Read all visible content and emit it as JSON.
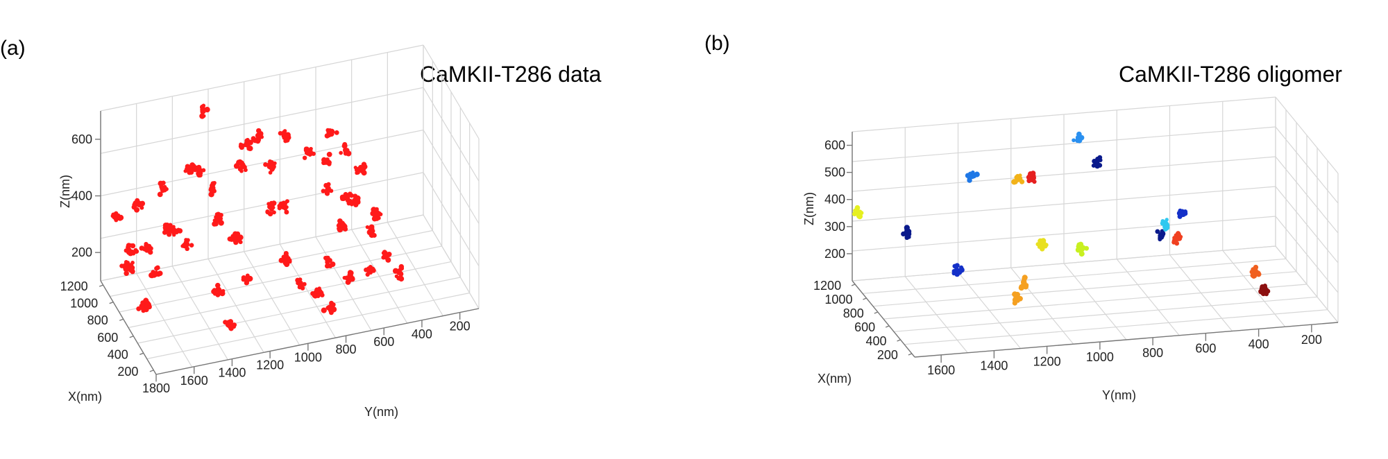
{
  "chart_data": [
    {
      "panel": "(a)",
      "type": "scatter",
      "title": "CaMKII-T286 data",
      "xlabel": "Y(nm)",
      "ylabel": "X(nm)",
      "zlabel": "Z(nm)",
      "y_ticks": [
        "1800",
        "1600",
        "1400",
        "1200",
        "1000",
        "800",
        "600",
        "400",
        "200"
      ],
      "x_ticks": [
        "1200",
        "1000",
        "800",
        "600",
        "400",
        "200"
      ],
      "z_ticks": [
        "600",
        "400",
        "200"
      ],
      "point_color": "#ff1a1a",
      "clusters": [
        {
          "y": 1800,
          "x": 950,
          "z": 420
        },
        {
          "y": 1700,
          "x": 900,
          "z": 460
        },
        {
          "y": 1750,
          "x": 850,
          "z": 260
        },
        {
          "y": 1650,
          "x": 900,
          "z": 300
        },
        {
          "y": 1620,
          "x": 820,
          "z": 230
        },
        {
          "y": 1750,
          "x": 600,
          "z": 200
        },
        {
          "y": 1600,
          "x": 700,
          "z": 420
        },
        {
          "y": 1550,
          "x": 950,
          "z": 480
        },
        {
          "y": 1500,
          "x": 900,
          "z": 340
        },
        {
          "y": 1450,
          "x": 850,
          "z": 300
        },
        {
          "y": 1400,
          "x": 1000,
          "z": 520
        },
        {
          "y": 1350,
          "x": 1000,
          "z": 500
        },
        {
          "y": 1300,
          "x": 900,
          "z": 460
        },
        {
          "y": 1300,
          "x": 800,
          "z": 380
        },
        {
          "y": 1250,
          "x": 700,
          "z": 340
        },
        {
          "y": 1200,
          "x": 800,
          "z": 300
        },
        {
          "y": 1350,
          "x": 600,
          "z": 200
        },
        {
          "y": 1200,
          "x": 600,
          "z": 220
        },
        {
          "y": 1150,
          "x": 900,
          "z": 520
        },
        {
          "y": 1100,
          "x": 1000,
          "z": 560
        },
        {
          "y": 1050,
          "x": 950,
          "z": 600
        },
        {
          "y": 1000,
          "x": 900,
          "z": 500
        },
        {
          "y": 1050,
          "x": 700,
          "z": 420
        },
        {
          "y": 950,
          "x": 800,
          "z": 380
        },
        {
          "y": 1000,
          "x": 600,
          "z": 260
        },
        {
          "y": 900,
          "x": 1000,
          "z": 560
        },
        {
          "y": 950,
          "x": 500,
          "z": 200
        },
        {
          "y": 1300,
          "x": 1100,
          "z": 680
        },
        {
          "y": 800,
          "x": 900,
          "z": 520
        },
        {
          "y": 700,
          "x": 900,
          "z": 480
        },
        {
          "y": 650,
          "x": 1000,
          "z": 540
        },
        {
          "y": 600,
          "x": 900,
          "z": 500
        },
        {
          "y": 750,
          "x": 700,
          "z": 440
        },
        {
          "y": 650,
          "x": 700,
          "z": 400
        },
        {
          "y": 700,
          "x": 600,
          "z": 340
        },
        {
          "y": 600,
          "x": 700,
          "z": 380
        },
        {
          "y": 550,
          "x": 800,
          "z": 460
        },
        {
          "y": 550,
          "x": 600,
          "z": 300
        },
        {
          "y": 500,
          "x": 650,
          "z": 340
        },
        {
          "y": 800,
          "x": 500,
          "z": 260
        },
        {
          "y": 700,
          "x": 450,
          "z": 200
        },
        {
          "y": 600,
          "x": 450,
          "z": 220
        },
        {
          "y": 500,
          "x": 500,
          "z": 240
        },
        {
          "y": 450,
          "x": 400,
          "z": 200
        },
        {
          "y": 900,
          "x": 350,
          "z": 200
        },
        {
          "y": 850,
          "x": 300,
          "z": 160
        },
        {
          "y": 1400,
          "x": 200,
          "z": 200
        },
        {
          "y": 1650,
          "x": 1200,
          "z": 200
        },
        {
          "y": 1700,
          "x": 1100,
          "z": 180
        },
        {
          "y": 1700,
          "x": 700,
          "z": 170
        }
      ]
    },
    {
      "panel": "(b)",
      "type": "scatter",
      "title": "CaMKII-T286 oligomer",
      "xlabel": "Y(nm)",
      "ylabel": "X(nm)",
      "zlabel": "Z(nm)",
      "y_ticks": [
        "1600",
        "1400",
        "1200",
        "1000",
        "800",
        "600",
        "400",
        "200"
      ],
      "x_ticks": [
        "1200",
        "1000",
        "800",
        "600",
        "400",
        "200"
      ],
      "z_ticks": [
        "600",
        "500",
        "400",
        "300",
        "200"
      ],
      "clusters": [
        {
          "y": 1700,
          "x": 1150,
          "z": 380,
          "color": "#e6f020"
        },
        {
          "y": 1550,
          "x": 1000,
          "z": 330,
          "color": "#0a1a8c"
        },
        {
          "y": 1400,
          "x": 800,
          "z": 230,
          "color": "#1430c8"
        },
        {
          "y": 1300,
          "x": 1000,
          "z": 520,
          "color": "#1f78e6"
        },
        {
          "y": 1150,
          "x": 900,
          "z": 520,
          "color": "#f2b218"
        },
        {
          "y": 1100,
          "x": 900,
          "z": 520,
          "color": "#e62020"
        },
        {
          "y": 900,
          "x": 1000,
          "z": 620,
          "color": "#2a90f0"
        },
        {
          "y": 850,
          "x": 900,
          "z": 560,
          "color": "#0a1a8c"
        },
        {
          "y": 1100,
          "x": 700,
          "z": 330,
          "color": "#e8e020"
        },
        {
          "y": 950,
          "x": 700,
          "z": 300,
          "color": "#c8f020"
        },
        {
          "y": 1200,
          "x": 550,
          "z": 230,
          "color": "#f5a020"
        },
        {
          "y": 1250,
          "x": 450,
          "z": 200,
          "color": "#f5a020"
        },
        {
          "y": 650,
          "x": 700,
          "z": 330,
          "color": "#0a1a8c"
        },
        {
          "y": 620,
          "x": 750,
          "z": 350,
          "color": "#30c8f0"
        },
        {
          "y": 550,
          "x": 800,
          "z": 370,
          "color": "#1430c8"
        },
        {
          "y": 600,
          "x": 650,
          "z": 320,
          "color": "#f04020"
        },
        {
          "y": 350,
          "x": 450,
          "z": 230,
          "color": "#f06020"
        },
        {
          "y": 350,
          "x": 300,
          "z": 200,
          "color": "#8c1010"
        }
      ]
    }
  ]
}
